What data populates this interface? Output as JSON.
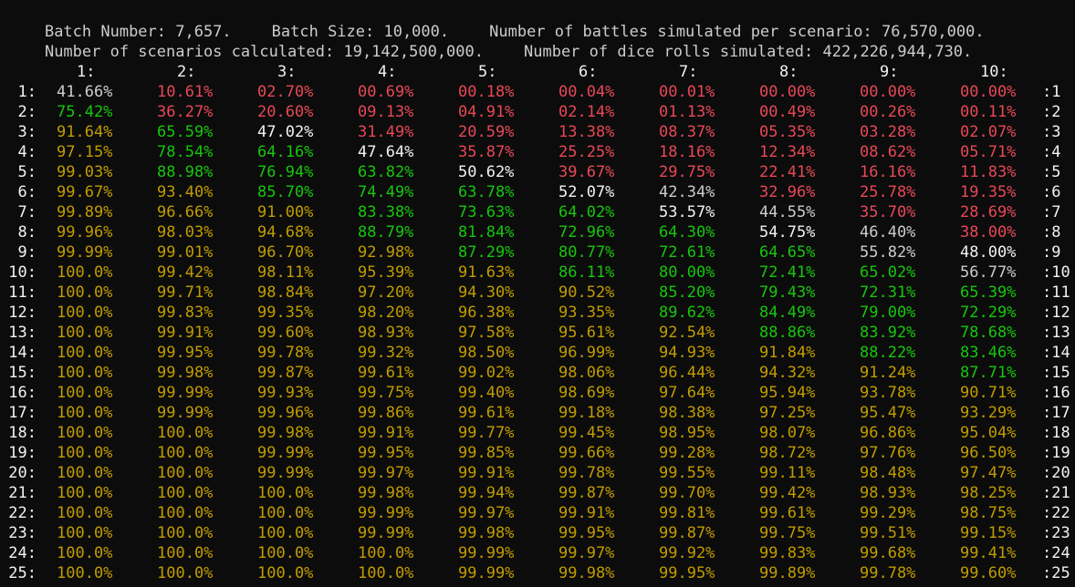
{
  "header": {
    "line1": [
      "Batch Number: 7,657.",
      "Batch Size: 10,000.",
      "Number of battles simulated per scenario: 76,570,000."
    ],
    "line2": [
      "Number of scenarios calculated: 19,142,500,000.",
      "Number of dice rolls simulated: 422,226,944,730."
    ]
  },
  "table": {
    "columns": [
      "1:",
      "2:",
      "3:",
      "4:",
      "5:",
      "6:",
      "7:",
      "8:",
      "9:",
      "10:"
    ],
    "row_labels_left": [
      "1:",
      "2:",
      "3:",
      "4:",
      "5:",
      "6:",
      "7:",
      "8:",
      "9:",
      "10:",
      "11:",
      "12:",
      "13:",
      "14:",
      "15:",
      "16:",
      "17:",
      "18:",
      "19:",
      "20:",
      "21:",
      "22:",
      "23:",
      "24:",
      "25:"
    ],
    "row_labels_right": [
      ":1",
      ":2",
      ":3",
      ":4",
      ":5",
      ":6",
      ":7",
      ":8",
      ":9",
      ":10",
      ":11",
      ":12",
      ":13",
      ":14",
      ":15",
      ":16",
      ":17",
      ":18",
      ":19",
      ":20",
      ":21",
      ":22",
      ":23",
      ":24",
      ":25"
    ],
    "colors": {
      "white": "#f2f2f2",
      "red": "#e74856",
      "green": "#16c60c",
      "yellow": "#c19c00",
      "grey": "#cccccc",
      "background": "#0c0c0c"
    },
    "rows": [
      [
        [
          "41.66%",
          "grey"
        ],
        [
          "10.61%",
          "red"
        ],
        [
          "02.70%",
          "red"
        ],
        [
          "00.69%",
          "red"
        ],
        [
          "00.18%",
          "red"
        ],
        [
          "00.04%",
          "red"
        ],
        [
          "00.01%",
          "red"
        ],
        [
          "00.00%",
          "red"
        ],
        [
          "00.00%",
          "red"
        ],
        [
          "00.00%",
          "red"
        ]
      ],
      [
        [
          "75.42%",
          "green"
        ],
        [
          "36.27%",
          "red"
        ],
        [
          "20.60%",
          "red"
        ],
        [
          "09.13%",
          "red"
        ],
        [
          "04.91%",
          "red"
        ],
        [
          "02.14%",
          "red"
        ],
        [
          "01.13%",
          "red"
        ],
        [
          "00.49%",
          "red"
        ],
        [
          "00.26%",
          "red"
        ],
        [
          "00.11%",
          "red"
        ]
      ],
      [
        [
          "91.64%",
          "yellow"
        ],
        [
          "65.59%",
          "green"
        ],
        [
          "47.02%",
          "white"
        ],
        [
          "31.49%",
          "red"
        ],
        [
          "20.59%",
          "red"
        ],
        [
          "13.38%",
          "red"
        ],
        [
          "08.37%",
          "red"
        ],
        [
          "05.35%",
          "red"
        ],
        [
          "03.28%",
          "red"
        ],
        [
          "02.07%",
          "red"
        ]
      ],
      [
        [
          "97.15%",
          "yellow"
        ],
        [
          "78.54%",
          "green"
        ],
        [
          "64.16%",
          "green"
        ],
        [
          "47.64%",
          "white"
        ],
        [
          "35.87%",
          "red"
        ],
        [
          "25.25%",
          "red"
        ],
        [
          "18.16%",
          "red"
        ],
        [
          "12.34%",
          "red"
        ],
        [
          "08.62%",
          "red"
        ],
        [
          "05.71%",
          "red"
        ]
      ],
      [
        [
          "99.03%",
          "yellow"
        ],
        [
          "88.98%",
          "green"
        ],
        [
          "76.94%",
          "green"
        ],
        [
          "63.82%",
          "green"
        ],
        [
          "50.62%",
          "white"
        ],
        [
          "39.67%",
          "red"
        ],
        [
          "29.75%",
          "red"
        ],
        [
          "22.41%",
          "red"
        ],
        [
          "16.16%",
          "red"
        ],
        [
          "11.83%",
          "red"
        ]
      ],
      [
        [
          "99.67%",
          "yellow"
        ],
        [
          "93.40%",
          "yellow"
        ],
        [
          "85.70%",
          "green"
        ],
        [
          "74.49%",
          "green"
        ],
        [
          "63.78%",
          "green"
        ],
        [
          "52.07%",
          "white"
        ],
        [
          "42.34%",
          "grey"
        ],
        [
          "32.96%",
          "red"
        ],
        [
          "25.78%",
          "red"
        ],
        [
          "19.35%",
          "red"
        ]
      ],
      [
        [
          "99.89%",
          "yellow"
        ],
        [
          "96.66%",
          "yellow"
        ],
        [
          "91.00%",
          "yellow"
        ],
        [
          "83.38%",
          "green"
        ],
        [
          "73.63%",
          "green"
        ],
        [
          "64.02%",
          "green"
        ],
        [
          "53.57%",
          "white"
        ],
        [
          "44.55%",
          "grey"
        ],
        [
          "35.70%",
          "red"
        ],
        [
          "28.69%",
          "red"
        ]
      ],
      [
        [
          "99.96%",
          "yellow"
        ],
        [
          "98.03%",
          "yellow"
        ],
        [
          "94.68%",
          "yellow"
        ],
        [
          "88.79%",
          "green"
        ],
        [
          "81.84%",
          "green"
        ],
        [
          "72.96%",
          "green"
        ],
        [
          "64.30%",
          "green"
        ],
        [
          "54.75%",
          "white"
        ],
        [
          "46.40%",
          "grey"
        ],
        [
          "38.00%",
          "red"
        ]
      ],
      [
        [
          "99.99%",
          "yellow"
        ],
        [
          "99.01%",
          "yellow"
        ],
        [
          "96.70%",
          "yellow"
        ],
        [
          "92.98%",
          "yellow"
        ],
        [
          "87.29%",
          "green"
        ],
        [
          "80.77%",
          "green"
        ],
        [
          "72.61%",
          "green"
        ],
        [
          "64.65%",
          "green"
        ],
        [
          "55.82%",
          "grey"
        ],
        [
          "48.00%",
          "white"
        ]
      ],
      [
        [
          "100.0%",
          "yellow"
        ],
        [
          "99.42%",
          "yellow"
        ],
        [
          "98.11%",
          "yellow"
        ],
        [
          "95.39%",
          "yellow"
        ],
        [
          "91.63%",
          "yellow"
        ],
        [
          "86.11%",
          "green"
        ],
        [
          "80.00%",
          "green"
        ],
        [
          "72.41%",
          "green"
        ],
        [
          "65.02%",
          "green"
        ],
        [
          "56.77%",
          "grey"
        ]
      ],
      [
        [
          "100.0%",
          "yellow"
        ],
        [
          "99.71%",
          "yellow"
        ],
        [
          "98.84%",
          "yellow"
        ],
        [
          "97.20%",
          "yellow"
        ],
        [
          "94.30%",
          "yellow"
        ],
        [
          "90.52%",
          "yellow"
        ],
        [
          "85.20%",
          "green"
        ],
        [
          "79.43%",
          "green"
        ],
        [
          "72.31%",
          "green"
        ],
        [
          "65.39%",
          "green"
        ]
      ],
      [
        [
          "100.0%",
          "yellow"
        ],
        [
          "99.83%",
          "yellow"
        ],
        [
          "99.35%",
          "yellow"
        ],
        [
          "98.20%",
          "yellow"
        ],
        [
          "96.38%",
          "yellow"
        ],
        [
          "93.35%",
          "yellow"
        ],
        [
          "89.62%",
          "green"
        ],
        [
          "84.49%",
          "green"
        ],
        [
          "79.00%",
          "green"
        ],
        [
          "72.29%",
          "green"
        ]
      ],
      [
        [
          "100.0%",
          "yellow"
        ],
        [
          "99.91%",
          "yellow"
        ],
        [
          "99.60%",
          "yellow"
        ],
        [
          "98.93%",
          "yellow"
        ],
        [
          "97.58%",
          "yellow"
        ],
        [
          "95.61%",
          "yellow"
        ],
        [
          "92.54%",
          "yellow"
        ],
        [
          "88.86%",
          "green"
        ],
        [
          "83.92%",
          "green"
        ],
        [
          "78.68%",
          "green"
        ]
      ],
      [
        [
          "100.0%",
          "yellow"
        ],
        [
          "99.95%",
          "yellow"
        ],
        [
          "99.78%",
          "yellow"
        ],
        [
          "99.32%",
          "yellow"
        ],
        [
          "98.50%",
          "yellow"
        ],
        [
          "96.99%",
          "yellow"
        ],
        [
          "94.93%",
          "yellow"
        ],
        [
          "91.84%",
          "yellow"
        ],
        [
          "88.22%",
          "green"
        ],
        [
          "83.46%",
          "green"
        ]
      ],
      [
        [
          "100.0%",
          "yellow"
        ],
        [
          "99.98%",
          "yellow"
        ],
        [
          "99.87%",
          "yellow"
        ],
        [
          "99.61%",
          "yellow"
        ],
        [
          "99.02%",
          "yellow"
        ],
        [
          "98.06%",
          "yellow"
        ],
        [
          "96.44%",
          "yellow"
        ],
        [
          "94.32%",
          "yellow"
        ],
        [
          "91.24%",
          "yellow"
        ],
        [
          "87.71%",
          "green"
        ]
      ],
      [
        [
          "100.0%",
          "yellow"
        ],
        [
          "99.99%",
          "yellow"
        ],
        [
          "99.93%",
          "yellow"
        ],
        [
          "99.75%",
          "yellow"
        ],
        [
          "99.40%",
          "yellow"
        ],
        [
          "98.69%",
          "yellow"
        ],
        [
          "97.64%",
          "yellow"
        ],
        [
          "95.94%",
          "yellow"
        ],
        [
          "93.78%",
          "yellow"
        ],
        [
          "90.71%",
          "yellow"
        ]
      ],
      [
        [
          "100.0%",
          "yellow"
        ],
        [
          "99.99%",
          "yellow"
        ],
        [
          "99.96%",
          "yellow"
        ],
        [
          "99.86%",
          "yellow"
        ],
        [
          "99.61%",
          "yellow"
        ],
        [
          "99.18%",
          "yellow"
        ],
        [
          "98.38%",
          "yellow"
        ],
        [
          "97.25%",
          "yellow"
        ],
        [
          "95.47%",
          "yellow"
        ],
        [
          "93.29%",
          "yellow"
        ]
      ],
      [
        [
          "100.0%",
          "yellow"
        ],
        [
          "100.0%",
          "yellow"
        ],
        [
          "99.98%",
          "yellow"
        ],
        [
          "99.91%",
          "yellow"
        ],
        [
          "99.77%",
          "yellow"
        ],
        [
          "99.45%",
          "yellow"
        ],
        [
          "98.95%",
          "yellow"
        ],
        [
          "98.07%",
          "yellow"
        ],
        [
          "96.86%",
          "yellow"
        ],
        [
          "95.04%",
          "yellow"
        ]
      ],
      [
        [
          "100.0%",
          "yellow"
        ],
        [
          "100.0%",
          "yellow"
        ],
        [
          "99.99%",
          "yellow"
        ],
        [
          "99.95%",
          "yellow"
        ],
        [
          "99.85%",
          "yellow"
        ],
        [
          "99.66%",
          "yellow"
        ],
        [
          "99.28%",
          "yellow"
        ],
        [
          "98.72%",
          "yellow"
        ],
        [
          "97.76%",
          "yellow"
        ],
        [
          "96.50%",
          "yellow"
        ]
      ],
      [
        [
          "100.0%",
          "yellow"
        ],
        [
          "100.0%",
          "yellow"
        ],
        [
          "99.99%",
          "yellow"
        ],
        [
          "99.97%",
          "yellow"
        ],
        [
          "99.91%",
          "yellow"
        ],
        [
          "99.78%",
          "yellow"
        ],
        [
          "99.55%",
          "yellow"
        ],
        [
          "99.11%",
          "yellow"
        ],
        [
          "98.48%",
          "yellow"
        ],
        [
          "97.47%",
          "yellow"
        ]
      ],
      [
        [
          "100.0%",
          "yellow"
        ],
        [
          "100.0%",
          "yellow"
        ],
        [
          "100.0%",
          "yellow"
        ],
        [
          "99.98%",
          "yellow"
        ],
        [
          "99.94%",
          "yellow"
        ],
        [
          "99.87%",
          "yellow"
        ],
        [
          "99.70%",
          "yellow"
        ],
        [
          "99.42%",
          "yellow"
        ],
        [
          "98.93%",
          "yellow"
        ],
        [
          "98.25%",
          "yellow"
        ]
      ],
      [
        [
          "100.0%",
          "yellow"
        ],
        [
          "100.0%",
          "yellow"
        ],
        [
          "100.0%",
          "yellow"
        ],
        [
          "99.99%",
          "yellow"
        ],
        [
          "99.97%",
          "yellow"
        ],
        [
          "99.91%",
          "yellow"
        ],
        [
          "99.81%",
          "yellow"
        ],
        [
          "99.61%",
          "yellow"
        ],
        [
          "99.29%",
          "yellow"
        ],
        [
          "98.75%",
          "yellow"
        ]
      ],
      [
        [
          "100.0%",
          "yellow"
        ],
        [
          "100.0%",
          "yellow"
        ],
        [
          "100.0%",
          "yellow"
        ],
        [
          "99.99%",
          "yellow"
        ],
        [
          "99.98%",
          "yellow"
        ],
        [
          "99.95%",
          "yellow"
        ],
        [
          "99.87%",
          "yellow"
        ],
        [
          "99.75%",
          "yellow"
        ],
        [
          "99.51%",
          "yellow"
        ],
        [
          "99.15%",
          "yellow"
        ]
      ],
      [
        [
          "100.0%",
          "yellow"
        ],
        [
          "100.0%",
          "yellow"
        ],
        [
          "100.0%",
          "yellow"
        ],
        [
          "100.0%",
          "yellow"
        ],
        [
          "99.99%",
          "yellow"
        ],
        [
          "99.97%",
          "yellow"
        ],
        [
          "99.92%",
          "yellow"
        ],
        [
          "99.83%",
          "yellow"
        ],
        [
          "99.68%",
          "yellow"
        ],
        [
          "99.41%",
          "yellow"
        ]
      ],
      [
        [
          "100.0%",
          "yellow"
        ],
        [
          "100.0%",
          "yellow"
        ],
        [
          "100.0%",
          "yellow"
        ],
        [
          "100.0%",
          "yellow"
        ],
        [
          "99.99%",
          "yellow"
        ],
        [
          "99.98%",
          "yellow"
        ],
        [
          "99.95%",
          "yellow"
        ],
        [
          "99.89%",
          "yellow"
        ],
        [
          "99.78%",
          "yellow"
        ],
        [
          "99.60%",
          "yellow"
        ]
      ]
    ]
  }
}
